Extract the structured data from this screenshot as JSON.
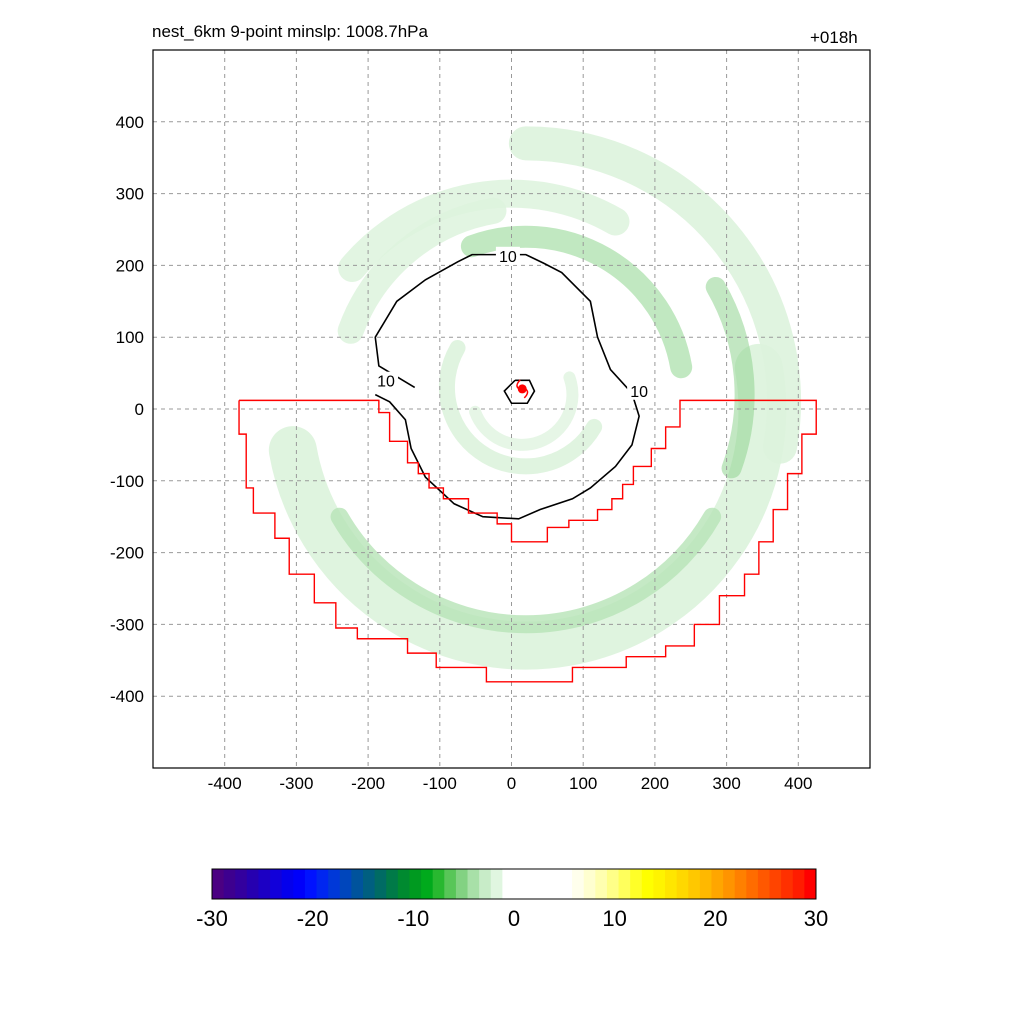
{
  "chart_data": {
    "type": "heatmap",
    "title": "nest_6km  9-point minslp: 1008.7hPa",
    "subtitle": "+018h",
    "xlim": [
      -500,
      500
    ],
    "ylim": [
      -500,
      500
    ],
    "x_ticks": [
      -400,
      -300,
      -200,
      -100,
      0,
      100,
      200,
      300,
      400
    ],
    "y_ticks": [
      -400,
      -300,
      -200,
      -100,
      0,
      100,
      200,
      300,
      400
    ],
    "grid": true,
    "grid_style": "dashed",
    "contour_label": "10",
    "contour_labels": [
      {
        "text": "10",
        "x": -5,
        "y": 212
      },
      {
        "text": "10",
        "x": -175,
        "y": 38
      },
      {
        "text": "10",
        "x": 178,
        "y": 24
      }
    ],
    "contour_line": [
      [
        -135,
        30
      ],
      [
        -185,
        60
      ],
      [
        -190,
        100
      ],
      [
        -160,
        150
      ],
      [
        -120,
        180
      ],
      [
        -75,
        205
      ],
      [
        -55,
        215
      ],
      [
        -20,
        215
      ],
      [
        20,
        215
      ],
      [
        45,
        203
      ],
      [
        70,
        190
      ],
      [
        110,
        150
      ],
      [
        120,
        100
      ],
      [
        138,
        55
      ],
      [
        168,
        22
      ],
      [
        178,
        -10
      ],
      [
        168,
        -50
      ],
      [
        145,
        -80
      ],
      [
        110,
        -110
      ],
      [
        85,
        -125
      ],
      [
        40,
        -140
      ],
      [
        10,
        -153
      ],
      [
        -40,
        -150
      ],
      [
        -80,
        -132
      ],
      [
        -120,
        -95
      ],
      [
        -140,
        -55
      ],
      [
        -148,
        -15
      ],
      [
        -170,
        10
      ],
      [
        -190,
        20
      ]
    ],
    "center_contour": [
      [
        5,
        40
      ],
      [
        25,
        40
      ],
      [
        32,
        25
      ],
      [
        22,
        8
      ],
      [
        0,
        8
      ],
      [
        -10,
        25
      ],
      [
        5,
        40
      ]
    ],
    "storm_center": [
      15,
      28
    ],
    "region_outline": [
      [
        -380,
        12
      ],
      [
        -185,
        12
      ],
      [
        -185,
        -5
      ],
      [
        -170,
        -5
      ],
      [
        -170,
        -45
      ],
      [
        -145,
        -45
      ],
      [
        -145,
        -75
      ],
      [
        -130,
        -75
      ],
      [
        -130,
        -90
      ],
      [
        -115,
        -90
      ],
      [
        -115,
        -110
      ],
      [
        -95,
        -110
      ],
      [
        -95,
        -125
      ],
      [
        -60,
        -125
      ],
      [
        -60,
        -145
      ],
      [
        -20,
        -145
      ],
      [
        -20,
        -160
      ],
      [
        0,
        -160
      ],
      [
        0,
        -185
      ],
      [
        50,
        -185
      ],
      [
        50,
        -165
      ],
      [
        80,
        -165
      ],
      [
        80,
        -155
      ],
      [
        120,
        -155
      ],
      [
        120,
        -140
      ],
      [
        140,
        -140
      ],
      [
        140,
        -125
      ],
      [
        155,
        -125
      ],
      [
        155,
        -105
      ],
      [
        170,
        -105
      ],
      [
        170,
        -80
      ],
      [
        195,
        -80
      ],
      [
        195,
        -55
      ],
      [
        215,
        -55
      ],
      [
        215,
        -25
      ],
      [
        235,
        -25
      ],
      [
        235,
        12
      ],
      [
        425,
        12
      ],
      [
        425,
        -35
      ],
      [
        405,
        -35
      ],
      [
        405,
        -90
      ],
      [
        385,
        -90
      ],
      [
        385,
        -140
      ],
      [
        365,
        -140
      ],
      [
        365,
        -185
      ],
      [
        345,
        -185
      ],
      [
        345,
        -230
      ],
      [
        325,
        -230
      ],
      [
        325,
        -260
      ],
      [
        290,
        -260
      ],
      [
        290,
        -300
      ],
      [
        255,
        -300
      ],
      [
        255,
        -330
      ],
      [
        215,
        -330
      ],
      [
        215,
        -345
      ],
      [
        160,
        -345
      ],
      [
        160,
        -360
      ],
      [
        85,
        -360
      ],
      [
        85,
        -380
      ],
      [
        -35,
        -380
      ],
      [
        -35,
        -360
      ],
      [
        -105,
        -360
      ],
      [
        -105,
        -340
      ],
      [
        -145,
        -340
      ],
      [
        -145,
        -320
      ],
      [
        -215,
        -320
      ],
      [
        -215,
        -305
      ],
      [
        -245,
        -305
      ],
      [
        -245,
        -270
      ],
      [
        -275,
        -270
      ],
      [
        -275,
        -230
      ],
      [
        -310,
        -230
      ],
      [
        -310,
        -180
      ],
      [
        -330,
        -180
      ],
      [
        -330,
        -145
      ],
      [
        -360,
        -145
      ],
      [
        -360,
        -110
      ],
      [
        -370,
        -110
      ],
      [
        -370,
        -35
      ],
      [
        -380,
        -35
      ],
      [
        -380,
        12
      ]
    ]
  },
  "colorbar": {
    "ticks": [
      "-30",
      "-20",
      "-10",
      "0",
      "10",
      "20",
      "30"
    ],
    "colors": [
      "#4b0082",
      "#3d008f",
      "#33009e",
      "#2600b0",
      "#1c00c4",
      "#1100da",
      "#0400ec",
      "#0000fa",
      "#0012ff",
      "#0026f0",
      "#0038d8",
      "#0046bc",
      "#00539c",
      "#005f80",
      "#006b64",
      "#007a48",
      "#008a30",
      "#009a20",
      "#00aa1c",
      "#28b830",
      "#58c658",
      "#82d282",
      "#a8e0a8",
      "#c8ecc8",
      "#e0f6e0",
      "#ffffff",
      "#ffffff",
      "#ffffff",
      "#ffffff",
      "#ffffff",
      "#ffffff",
      "#ffffec",
      "#ffffd0",
      "#ffffb0",
      "#ffff88",
      "#ffff5c",
      "#ffff28",
      "#ffff00",
      "#fff400",
      "#ffe600",
      "#ffd800",
      "#ffc800",
      "#ffb800",
      "#ffa600",
      "#ff9400",
      "#ff8000",
      "#ff6c00",
      "#ff5800",
      "#ff4400",
      "#ff3000",
      "#ff1c00",
      "#ff0000"
    ]
  },
  "colors": {
    "region_outline": "#ff0000",
    "contour": "#000000",
    "storm_marker": "#ff0000",
    "grid": "#999999",
    "light_green": "#ddf3dd",
    "mid_green": "#b6e4b6",
    "dark_green": "#8fd38f"
  }
}
